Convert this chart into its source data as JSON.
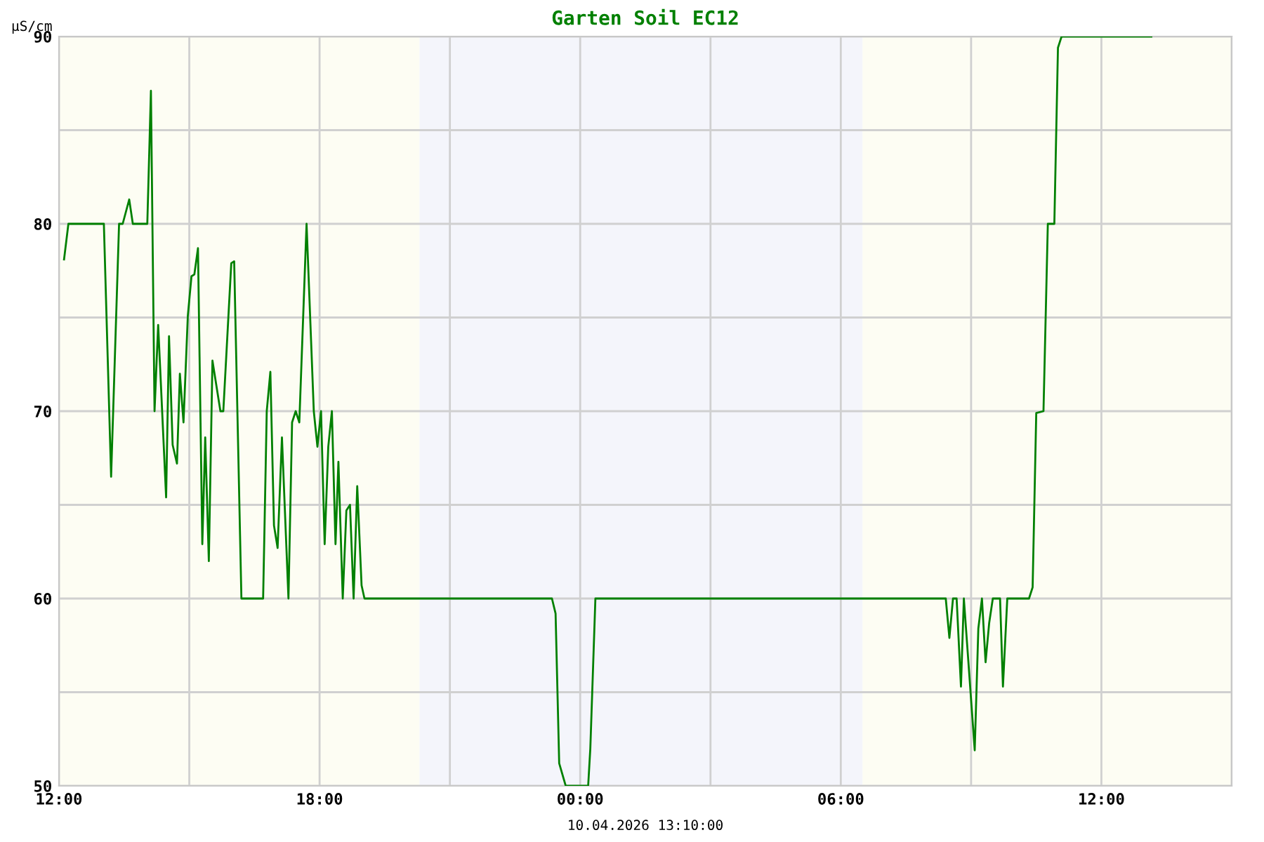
{
  "chart_data": {
    "type": "line",
    "title": "Garten Soil EC12",
    "ylabel": "µS/cm",
    "xlabel": "10.04.2026 13:10:00",
    "xlim": [
      "2026-04-09T12:00",
      "2026-04-10T15:00"
    ],
    "ylim": [
      50,
      90
    ],
    "xticks": [
      {
        "value": "2026-04-09T12:00",
        "label": "12:00"
      },
      {
        "value": "2026-04-09T15:00",
        "label": null
      },
      {
        "value": "2026-04-09T18:00",
        "label": "18:00"
      },
      {
        "value": "2026-04-09T21:00",
        "label": null
      },
      {
        "value": "2026-04-10T00:00",
        "label": "00:00"
      },
      {
        "value": "2026-04-10T03:00",
        "label": null
      },
      {
        "value": "2026-04-10T06:00",
        "label": "06:00"
      },
      {
        "value": "2026-04-10T09:00",
        "label": null
      },
      {
        "value": "2026-04-10T12:00",
        "label": "12:00"
      },
      {
        "value": "2026-04-10T15:00",
        "label": null
      }
    ],
    "yticks": [
      50,
      {
        "value": 55,
        "label": null
      },
      60,
      {
        "value": 65,
        "label": null
      },
      70,
      {
        "value": 75,
        "label": null
      },
      80,
      {
        "value": 85,
        "label": null
      },
      90
    ],
    "grid": true,
    "bands": [
      {
        "axis": "x",
        "from": "2026-04-09T12:00",
        "to": "2026-04-09T20:18",
        "color": "#fdfdf3"
      },
      {
        "axis": "x",
        "from": "2026-04-09T20:18",
        "to": "2026-04-10T06:30",
        "color": "#f4f5fb"
      },
      {
        "axis": "x",
        "from": "2026-04-10T06:30",
        "to": "2026-04-10T15:00",
        "color": "#fdfdf3"
      }
    ],
    "series": [
      {
        "color": "#008000",
        "x": [
          "2026-04-09T12:07",
          "2026-04-09T12:13",
          "2026-04-09T13:02",
          "2026-04-09T13:12",
          "2026-04-09T13:23",
          "2026-04-09T13:28",
          "2026-04-09T13:37",
          "2026-04-09T13:42",
          "2026-04-09T14:02",
          "2026-04-09T14:07",
          "2026-04-09T14:12",
          "2026-04-09T14:17",
          "2026-04-09T14:28",
          "2026-04-09T14:32",
          "2026-04-09T14:37",
          "2026-04-09T14:43",
          "2026-04-09T14:47",
          "2026-04-09T14:52",
          "2026-04-09T14:58",
          "2026-04-09T15:03",
          "2026-04-09T15:07",
          "2026-04-09T15:12",
          "2026-04-09T15:18",
          "2026-04-09T15:22",
          "2026-04-09T15:27",
          "2026-04-09T15:32",
          "2026-04-09T15:43",
          "2026-04-09T15:47",
          "2026-04-09T15:58",
          "2026-04-09T16:02",
          "2026-04-09T16:12",
          "2026-04-09T16:42",
          "2026-04-09T16:47",
          "2026-04-09T16:52",
          "2026-04-09T16:57",
          "2026-04-09T17:02",
          "2026-04-09T17:08",
          "2026-04-09T17:17",
          "2026-04-09T17:22",
          "2026-04-09T17:27",
          "2026-04-09T17:32",
          "2026-04-09T17:42",
          "2026-04-09T17:52",
          "2026-04-09T17:57",
          "2026-04-09T18:02",
          "2026-04-09T18:07",
          "2026-04-09T18:12",
          "2026-04-09T18:17",
          "2026-04-09T18:22",
          "2026-04-09T18:26",
          "2026-04-09T18:32",
          "2026-04-09T18:37",
          "2026-04-09T18:42",
          "2026-04-09T18:47",
          "2026-04-09T18:52",
          "2026-04-09T18:58",
          "2026-04-09T19:02",
          "2026-04-09T23:21",
          "2026-04-09T23:26",
          "2026-04-09T23:31",
          "2026-04-09T23:40",
          "2026-04-10T00:11",
          "2026-04-10T00:14",
          "2026-04-10T00:21",
          "2026-04-10T08:25",
          "2026-04-10T08:30",
          "2026-04-10T08:35",
          "2026-04-10T08:40",
          "2026-04-10T08:46",
          "2026-04-10T08:50",
          "2026-04-10T09:05",
          "2026-04-10T09:10",
          "2026-04-10T09:15",
          "2026-04-10T09:20",
          "2026-04-10T09:25",
          "2026-04-10T09:30",
          "2026-04-10T09:40",
          "2026-04-10T09:44",
          "2026-04-10T09:50",
          "2026-04-10T10:20",
          "2026-04-10T10:25",
          "2026-04-10T10:30",
          "2026-04-10T10:40",
          "2026-04-10T10:46",
          "2026-04-10T10:55",
          "2026-04-10T11:00",
          "2026-04-10T11:05",
          "2026-04-10T13:09"
        ],
        "values": [
          78.1,
          80,
          80,
          66.5,
          80,
          80,
          81.3,
          80,
          80,
          87.1,
          70,
          74.6,
          65.4,
          74,
          68.2,
          67.2,
          72,
          69.4,
          75.1,
          77.2,
          77.3,
          78.7,
          62.9,
          68.6,
          62,
          72.7,
          70,
          70,
          77.9,
          78,
          60,
          60,
          70,
          72.1,
          63.9,
          62.7,
          68.6,
          60,
          69.4,
          70,
          69.4,
          80,
          70,
          68.1,
          70,
          62.9,
          68.1,
          70,
          62.9,
          67.3,
          60,
          64.7,
          65,
          60,
          66,
          60.7,
          60,
          60,
          59.2,
          51.2,
          50,
          50,
          52,
          60,
          60,
          57.9,
          60,
          60,
          55.3,
          60,
          51.9,
          58.4,
          60,
          56.6,
          58.7,
          60,
          60,
          55.3,
          60,
          60,
          60.6,
          69.9,
          70,
          80,
          80,
          89.4,
          90,
          90
        ]
      }
    ]
  }
}
